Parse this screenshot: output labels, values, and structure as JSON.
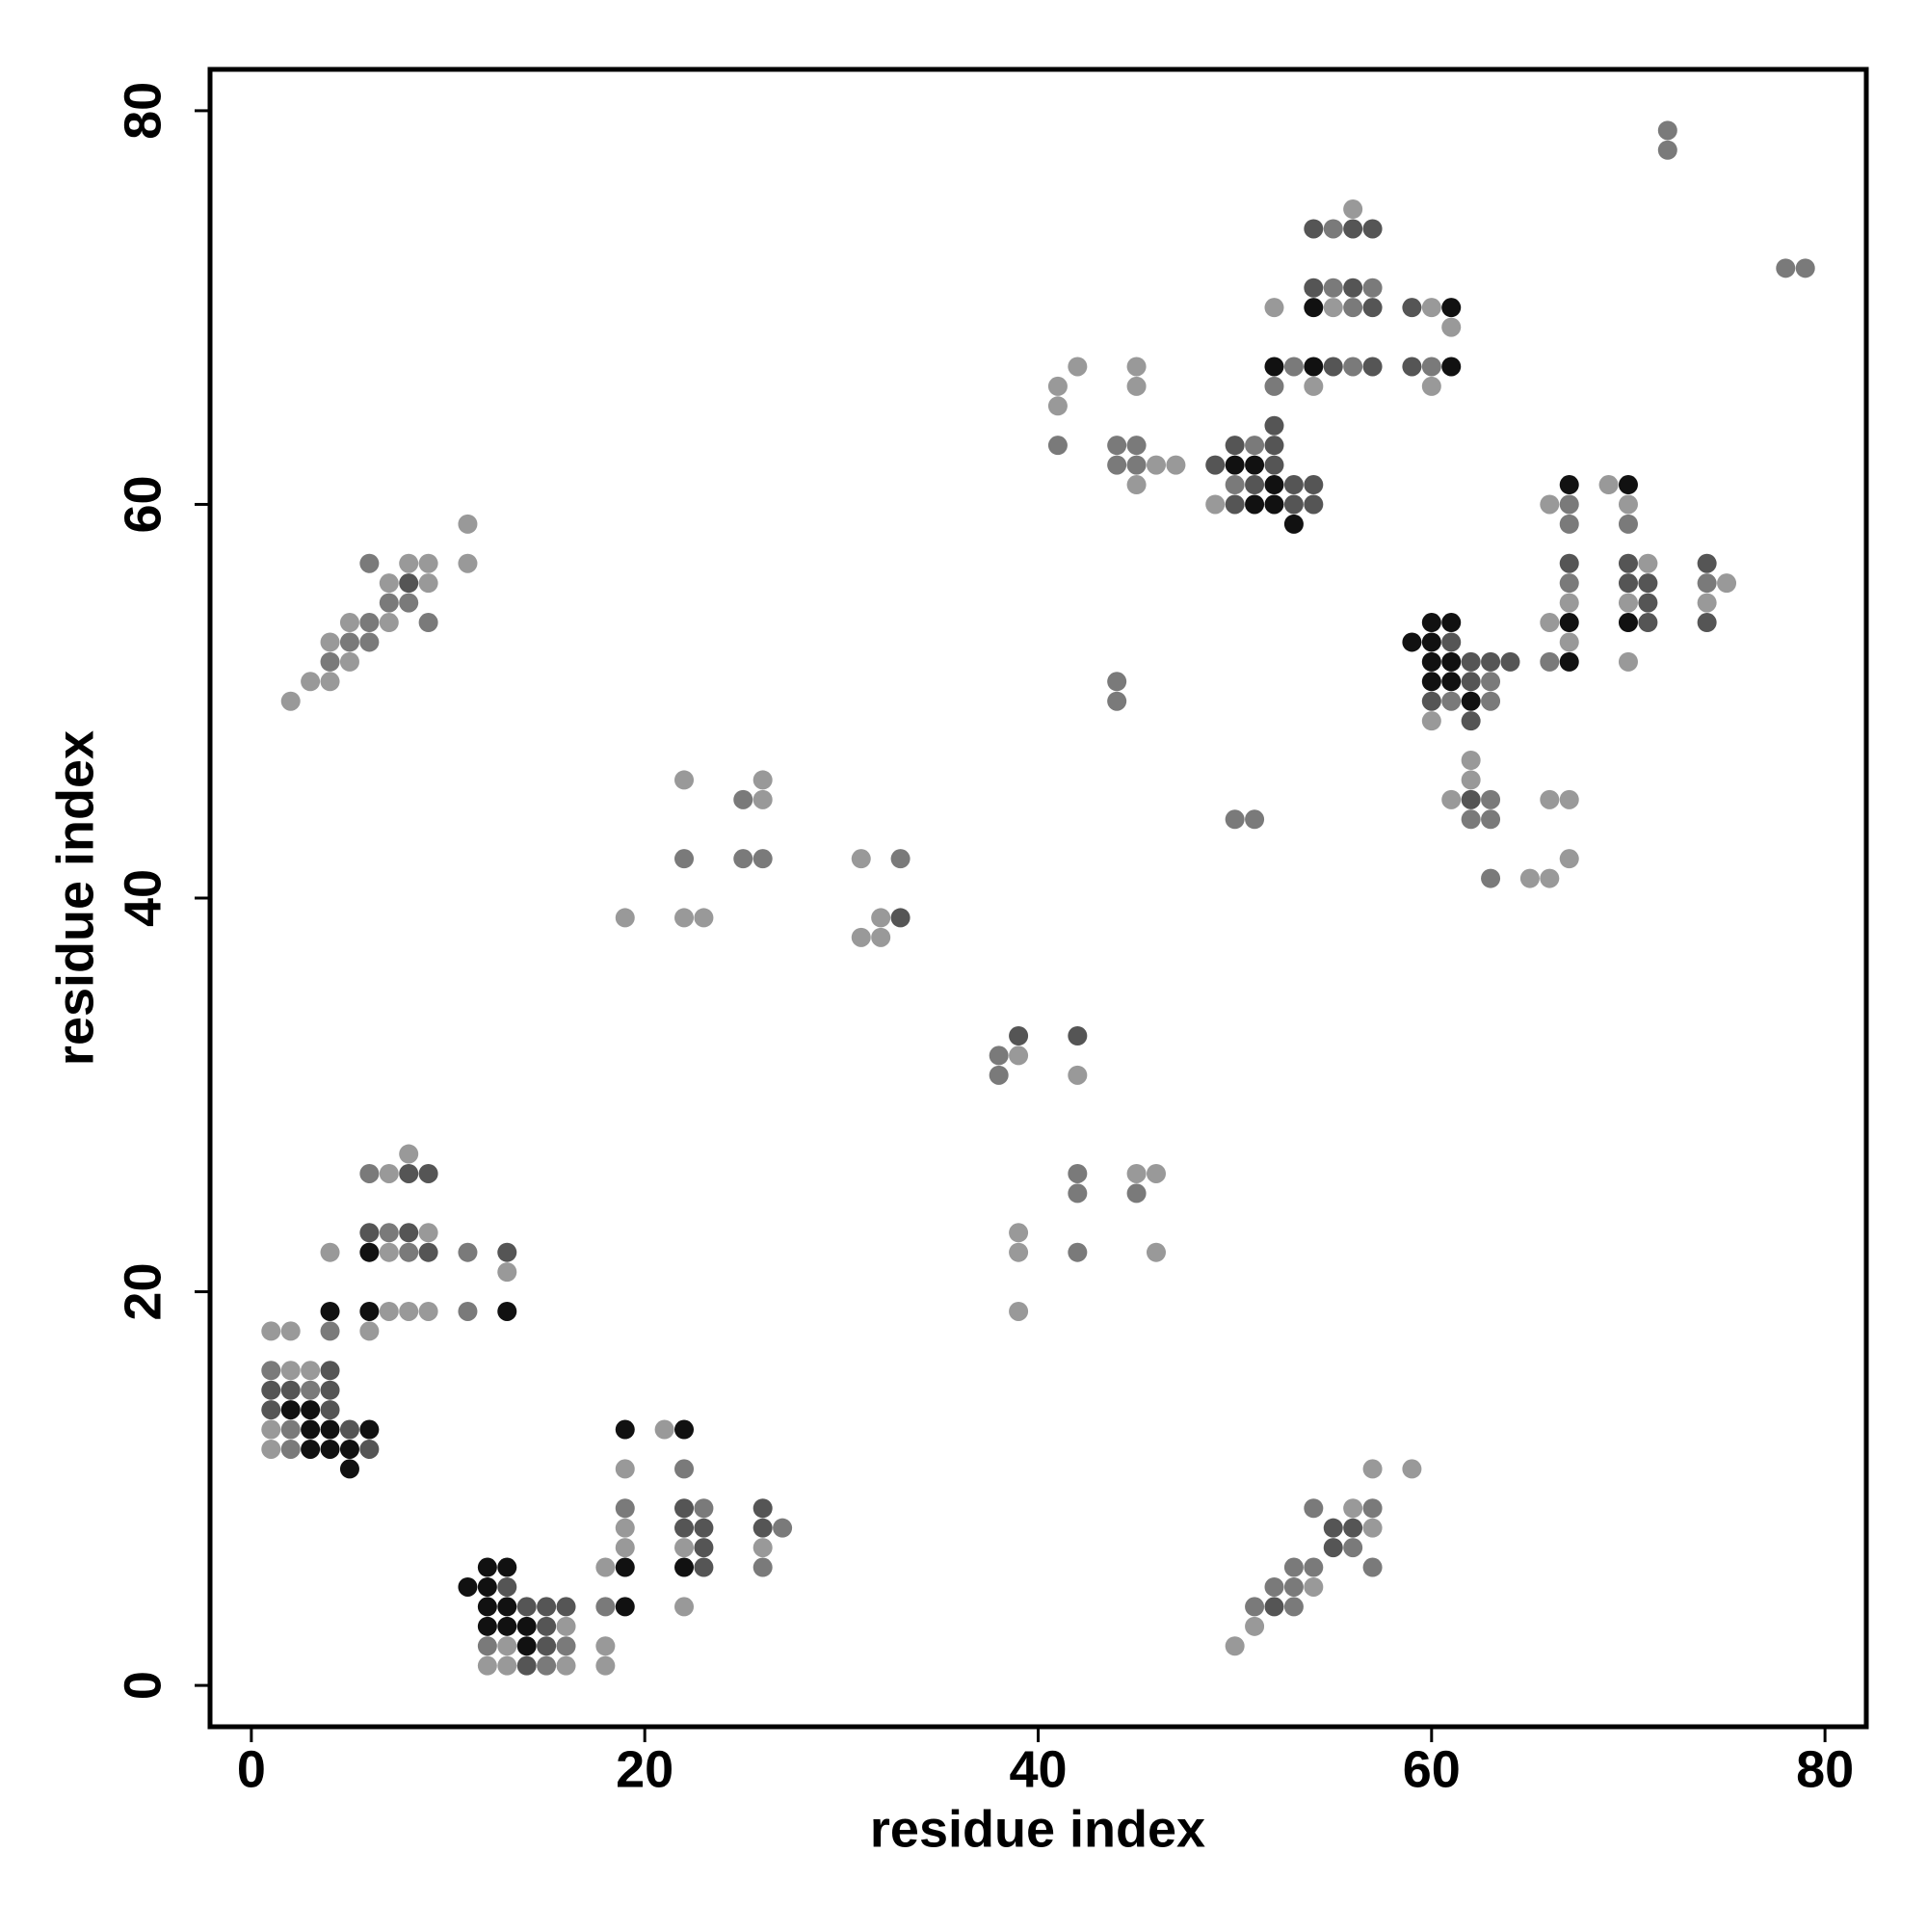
{
  "chart_data": {
    "type": "scatter",
    "xlabel": "residue index",
    "ylabel": "residue index",
    "xlim": [
      -2.1,
      82.1
    ],
    "ylim": [
      -2.1,
      82.1
    ],
    "xticks": [
      0,
      20,
      40,
      60,
      80
    ],
    "yticks": [
      0,
      20,
      40,
      60,
      80
    ],
    "x": [
      1,
      2,
      4,
      6,
      1,
      2,
      3,
      4,
      1,
      2,
      3,
      4,
      1,
      2,
      3,
      4,
      1,
      2,
      3,
      4,
      5,
      6,
      1,
      2,
      3,
      4,
      5,
      6,
      5,
      4,
      6,
      7,
      8,
      9,
      11,
      13,
      4,
      6,
      7,
      8,
      9,
      11,
      13,
      13,
      6,
      7,
      8,
      9,
      6,
      7,
      8,
      9,
      8,
      2,
      3,
      4,
      4,
      5,
      4,
      5,
      6,
      5,
      6,
      7,
      9,
      7,
      8,
      7,
      8,
      9,
      6,
      8,
      9,
      11,
      11,
      12,
      13,
      18,
      19,
      22,
      23,
      26,
      53,
      54,
      57,
      11,
      12,
      13,
      52,
      53,
      54,
      12,
      13,
      14,
      15,
      16,
      18,
      19,
      22,
      51,
      52,
      53,
      12,
      13,
      14,
      15,
      16,
      51,
      12,
      13,
      14,
      15,
      16,
      18,
      50,
      12,
      13,
      14,
      15,
      16,
      18,
      19,
      22,
      23,
      26,
      55,
      56,
      19,
      22,
      23,
      26,
      27,
      55,
      56,
      57,
      19,
      22,
      23,
      26,
      54,
      56,
      57,
      19,
      22,
      57,
      59,
      19,
      21,
      22,
      19,
      22,
      23,
      32,
      33,
      22,
      25,
      26,
      31,
      33,
      67,
      25,
      26,
      61,
      62,
      63,
      66,
      67,
      22,
      26,
      62,
      31,
      32,
      39,
      42,
      38,
      39,
      38,
      42,
      42,
      45,
      46,
      42,
      45,
      39,
      39,
      42,
      46,
      39,
      42,
      45,
      52,
      53,
      54,
      55,
      56,
      57,
      59,
      60,
      61,
      41,
      45,
      52,
      54,
      60,
      41,
      41,
      44,
      45,
      50,
      51,
      52,
      44,
      45,
      46,
      47,
      49,
      50,
      51,
      52,
      45,
      50,
      51,
      52,
      53,
      54,
      67,
      69,
      70,
      44,
      60,
      61,
      62,
      63,
      44,
      60,
      61,
      62,
      63,
      50,
      51,
      62,
      63,
      52,
      49,
      50,
      51,
      52,
      53,
      54,
      66,
      67,
      70,
      53,
      67,
      70,
      56,
      54,
      55,
      56,
      57,
      54,
      55,
      56,
      57,
      52,
      54,
      55,
      56,
      57,
      59,
      60,
      61,
      61,
      60,
      61,
      66,
      67,
      70,
      71,
      74,
      59,
      60,
      61,
      67,
      60,
      61,
      62,
      63,
      64,
      66,
      67,
      70,
      60,
      62,
      62,
      63,
      65,
      66,
      67,
      70,
      71,
      74,
      67,
      70,
      71,
      74,
      75,
      67,
      70,
      71,
      74,
      72,
      72,
      78,
      79
    ],
    "y": [
      18,
      18,
      18,
      18,
      16,
      16,
      16,
      16,
      15,
      15,
      15,
      15,
      14,
      14,
      14,
      14,
      13,
      13,
      13,
      13,
      13,
      13,
      12,
      12,
      12,
      12,
      12,
      12,
      11,
      19,
      19,
      19,
      19,
      19,
      19,
      19,
      22,
      22,
      22,
      22,
      22,
      22,
      22,
      21,
      23,
      23,
      23,
      23,
      26,
      26,
      26,
      26,
      27,
      50,
      51,
      51,
      52,
      52,
      53,
      53,
      53,
      54,
      54,
      54,
      54,
      55,
      55,
      56,
      56,
      56,
      57,
      57,
      57,
      57,
      59,
      6,
      6,
      6,
      6,
      6,
      6,
      6,
      6,
      6,
      6,
      5,
      5,
      5,
      5,
      5,
      5,
      4,
      4,
      4,
      4,
      4,
      4,
      4,
      4,
      4,
      4,
      4,
      3,
      3,
      3,
      3,
      3,
      3,
      2,
      2,
      2,
      2,
      2,
      2,
      2,
      1,
      1,
      1,
      1,
      1,
      1,
      7,
      7,
      7,
      7,
      7,
      7,
      8,
      8,
      8,
      8,
      8,
      8,
      8,
      8,
      9,
      9,
      9,
      9,
      9,
      9,
      9,
      11,
      11,
      11,
      11,
      13,
      13,
      13,
      39,
      39,
      39,
      39,
      39,
      42,
      42,
      42,
      42,
      42,
      42,
      45,
      45,
      45,
      45,
      45,
      45,
      45,
      46,
      46,
      46,
      38,
      38,
      33,
      33,
      32,
      32,
      31,
      31,
      26,
      26,
      26,
      25,
      25,
      23,
      22,
      22,
      22,
      19,
      67,
      67,
      67,
      67,
      67,
      67,
      67,
      67,
      67,
      67,
      67,
      66,
      66,
      66,
      66,
      66,
      65,
      63,
      63,
      63,
      63,
      63,
      63,
      62,
      62,
      62,
      62,
      62,
      62,
      62,
      62,
      61,
      61,
      61,
      61,
      61,
      61,
      61,
      61,
      61,
      51,
      51,
      51,
      51,
      51,
      50,
      50,
      50,
      50,
      50,
      44,
      44,
      44,
      44,
      64,
      60,
      60,
      60,
      60,
      60,
      60,
      60,
      60,
      60,
      59,
      59,
      59,
      75,
      74,
      74,
      74,
      74,
      71,
      71,
      71,
      71,
      70,
      70,
      70,
      70,
      70,
      70,
      70,
      70,
      69,
      54,
      54,
      54,
      54,
      54,
      54,
      54,
      53,
      53,
      53,
      53,
      52,
      52,
      52,
      52,
      52,
      52,
      52,
      52,
      49,
      49,
      47,
      41,
      41,
      41,
      57,
      57,
      57,
      57,
      56,
      56,
      56,
      56,
      56,
      55,
      55,
      55,
      55,
      79,
      78,
      72,
      72
    ],
    "colors": [
      "#999999",
      "#999999",
      "#7a7a7a",
      "#999999",
      "#7a7a7a",
      "#999999",
      "#999999",
      "#555555",
      "#555555",
      "#555555",
      "#7a7a7a",
      "#555555",
      "#555555",
      "#111111",
      "#111111",
      "#555555",
      "#999999",
      "#7a7a7a",
      "#111111",
      "#111111",
      "#555555",
      "#111111",
      "#999999",
      "#7a7a7a",
      "#111111",
      "#111111",
      "#111111",
      "#555555",
      "#111111",
      "#111111",
      "#111111",
      "#999999",
      "#999999",
      "#999999",
      "#7a7a7a",
      "#111111",
      "#999999",
      "#111111",
      "#999999",
      "#7a7a7a",
      "#555555",
      "#7a7a7a",
      "#555555",
      "#999999",
      "#555555",
      "#7a7a7a",
      "#555555",
      "#999999",
      "#7a7a7a",
      "#999999",
      "#555555",
      "#555555",
      "#999999",
      "#999999",
      "#999999",
      "#999999",
      "#7a7a7a",
      "#999999",
      "#999999",
      "#7a7a7a",
      "#7a7a7a",
      "#999999",
      "#7a7a7a",
      "#999999",
      "#7a7a7a",
      "#7a7a7a",
      "#7a7a7a",
      "#999999",
      "#555555",
      "#999999",
      "#7a7a7a",
      "#999999",
      "#999999",
      "#999999",
      "#999999",
      "#111111",
      "#111111",
      "#999999",
      "#111111",
      "#111111",
      "#555555",
      "#7a7a7a",
      "#7a7a7a",
      "#7a7a7a",
      "#7a7a7a",
      "#111111",
      "#111111",
      "#555555",
      "#7a7a7a",
      "#7a7a7a",
      "#999999",
      "#111111",
      "#111111",
      "#555555",
      "#555555",
      "#555555",
      "#7a7a7a",
      "#111111",
      "#999999",
      "#7a7a7a",
      "#555555",
      "#7a7a7a",
      "#111111",
      "#111111",
      "#111111",
      "#555555",
      "#999999",
      "#999999",
      "#7a7a7a",
      "#999999",
      "#111111",
      "#555555",
      "#7a7a7a",
      "#999999",
      "#999999",
      "#999999",
      "#999999",
      "#555555",
      "#7a7a7a",
      "#999999",
      "#999999",
      "#999999",
      "#999999",
      "#555555",
      "#999999",
      "#555555",
      "#7a7a7a",
      "#999999",
      "#555555",
      "#555555",
      "#555555",
      "#7a7a7a",
      "#555555",
      "#555555",
      "#999999",
      "#7a7a7a",
      "#555555",
      "#7a7a7a",
      "#555555",
      "#7a7a7a",
      "#999999",
      "#7a7a7a",
      "#999999",
      "#7a7a7a",
      "#999999",
      "#999999",
      "#111111",
      "#999999",
      "#111111",
      "#999999",
      "#999999",
      "#999999",
      "#999999",
      "#555555",
      "#7a7a7a",
      "#7a7a7a",
      "#7a7a7a",
      "#999999",
      "#7a7a7a",
      "#999999",
      "#7a7a7a",
      "#999999",
      "#999999",
      "#555555",
      "#7a7a7a",
      "#999999",
      "#999999",
      "#999999",
      "#999999",
      "#999999",
      "#999999",
      "#999999",
      "#555555",
      "#555555",
      "#7a7a7a",
      "#999999",
      "#7a7a7a",
      "#999999",
      "#7a7a7a",
      "#999999",
      "#999999",
      "#7a7a7a",
      "#7a7a7a",
      "#999999",
      "#999999",
      "#7a7a7a",
      "#999999",
      "#999999",
      "#999999",
      "#999999",
      "#111111",
      "#7a7a7a",
      "#111111",
      "#555555",
      "#7a7a7a",
      "#555555",
      "#555555",
      "#7a7a7a",
      "#111111",
      "#999999",
      "#999999",
      "#7a7a7a",
      "#999999",
      "#999999",
      "#999999",
      "#7a7a7a",
      "#7a7a7a",
      "#7a7a7a",
      "#555555",
      "#7a7a7a",
      "#555555",
      "#7a7a7a",
      "#7a7a7a",
      "#999999",
      "#999999",
      "#555555",
      "#111111",
      "#111111",
      "#555555",
      "#999999",
      "#7a7a7a",
      "#555555",
      "#111111",
      "#555555",
      "#555555",
      "#111111",
      "#999999",
      "#111111",
      "#7a7a7a",
      "#111111",
      "#111111",
      "#555555",
      "#7a7a7a",
      "#7a7a7a",
      "#555555",
      "#7a7a7a",
      "#111111",
      "#7a7a7a",
      "#7a7a7a",
      "#7a7a7a",
      "#7a7a7a",
      "#7a7a7a",
      "#555555",
      "#999999",
      "#555555",
      "#111111",
      "#111111",
      "#555555",
      "#555555",
      "#999999",
      "#7a7a7a",
      "#999999",
      "#111111",
      "#7a7a7a",
      "#7a7a7a",
      "#999999",
      "#555555",
      "#7a7a7a",
      "#555555",
      "#555555",
      "#555555",
      "#7a7a7a",
      "#555555",
      "#7a7a7a",
      "#999999",
      "#111111",
      "#999999",
      "#7a7a7a",
      "#555555",
      "#555555",
      "#999999",
      "#111111",
      "#999999",
      "#111111",
      "#111111",
      "#999999",
      "#111111",
      "#111111",
      "#555555",
      "#555555",
      "#111111",
      "#111111",
      "#555555",
      "#999999",
      "#111111",
      "#111111",
      "#555555",
      "#555555",
      "#555555",
      "#7a7a7a",
      "#111111",
      "#999999",
      "#999999",
      "#555555",
      "#999999",
      "#7a7a7a",
      "#999999",
      "#999999",
      "#555555",
      "#555555",
      "#999999",
      "#555555",
      "#7a7a7a",
      "#555555",
      "#555555",
      "#7a7a7a",
      "#999999",
      "#999999",
      "#999999",
      "#555555",
      "#999999",
      "#7a7a7a",
      "#7a7a7a",
      "#7a7a7a",
      "#7a7a7a"
    ]
  }
}
